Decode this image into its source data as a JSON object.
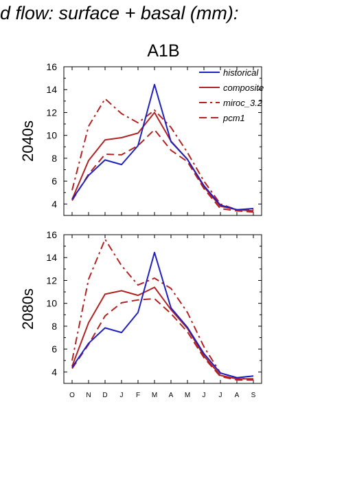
{
  "title": "d flow: surface + basal (mm):",
  "chart_data": {
    "type": "line",
    "scenario": "A1B",
    "categories": [
      "O",
      "N",
      "D",
      "J",
      "F",
      "M",
      "A",
      "M",
      "J",
      "J",
      "A",
      "S"
    ],
    "legend": [
      {
        "name": "historical",
        "color": "#1f1fbf",
        "dash": "solid"
      },
      {
        "name": "composite",
        "color": "#b22222",
        "dash": "solid"
      },
      {
        "name": "miroc_3.2",
        "color": "#b22222",
        "dash": "dashdot"
      },
      {
        "name": "pcm1",
        "color": "#b22222",
        "dash": "dash"
      }
    ],
    "panels": [
      {
        "label": "2040s",
        "ylim": [
          3,
          16
        ],
        "yticks": [
          4,
          6,
          8,
          10,
          12,
          14,
          16
        ],
        "series": [
          {
            "name": "historical",
            "values": [
              4.4,
              6.5,
              7.85,
              7.45,
              9.1,
              14.45,
              9.45,
              7.9,
              5.6,
              3.9,
              3.5,
              3.6
            ]
          },
          {
            "name": "composite",
            "values": [
              4.4,
              7.8,
              9.6,
              9.8,
              10.2,
              12.0,
              9.5,
              7.9,
              5.5,
              3.8,
              3.5,
              3.4
            ]
          },
          {
            "name": "miroc_3.2",
            "values": [
              5.2,
              10.8,
              13.2,
              11.9,
              11.1,
              12.2,
              10.7,
              8.5,
              6.0,
              4.0,
              3.5,
              3.5
            ]
          },
          {
            "name": "pcm1",
            "values": [
              4.3,
              6.6,
              8.35,
              8.3,
              9.1,
              10.5,
              8.7,
              7.7,
              5.35,
              3.6,
              3.4,
              3.3
            ]
          }
        ]
      },
      {
        "label": "2080s",
        "ylim": [
          3,
          16
        ],
        "yticks": [
          4,
          6,
          8,
          10,
          12,
          14,
          16
        ],
        "series": [
          {
            "name": "historical",
            "values": [
              4.4,
              6.5,
              7.85,
              7.45,
              9.2,
              14.45,
              9.6,
              7.9,
              5.6,
              3.9,
              3.5,
              3.65
            ]
          },
          {
            "name": "composite",
            "values": [
              4.5,
              8.3,
              10.8,
              11.1,
              10.7,
              11.4,
              9.45,
              7.8,
              5.4,
              3.7,
              3.4,
              3.4
            ]
          },
          {
            "name": "miroc_3.2",
            "values": [
              5.0,
              12.1,
              15.6,
              13.3,
              11.6,
              12.2,
              11.3,
              9.2,
              6.2,
              3.9,
              3.5,
              3.3
            ]
          },
          {
            "name": "pcm1",
            "values": [
              4.3,
              6.4,
              8.9,
              10.05,
              10.3,
              10.4,
              9.1,
              7.5,
              5.25,
              3.6,
              3.3,
              3.3
            ]
          }
        ]
      }
    ]
  }
}
